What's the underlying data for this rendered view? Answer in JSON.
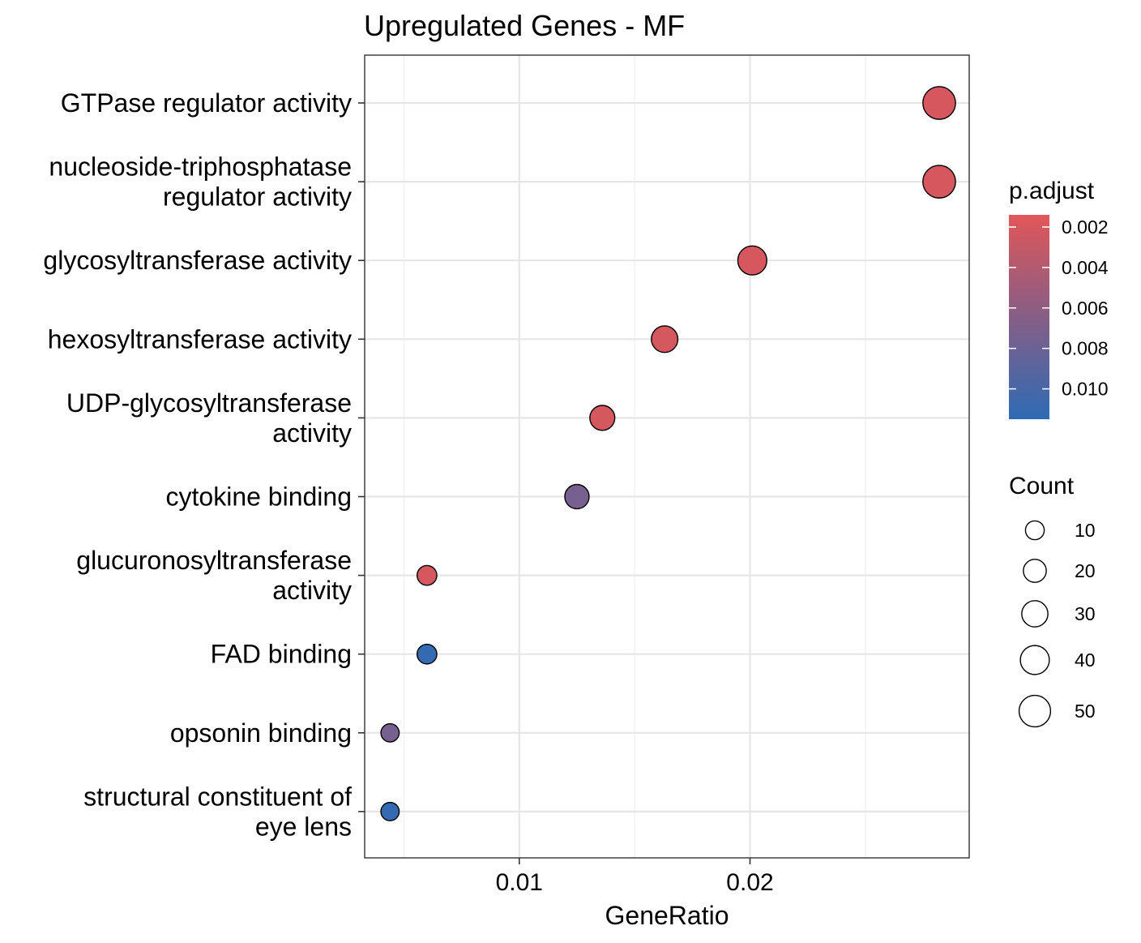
{
  "chart_data": {
    "type": "scatter",
    "title": "Upregulated Genes - MF",
    "xlabel": "GeneRatio",
    "ylabel": "",
    "xlim": [
      0.0033,
      0.0295
    ],
    "x_ticks": [
      0.01,
      0.02
    ],
    "x_tick_labels": [
      "0.01",
      "0.02"
    ],
    "grid": true,
    "legend_position": "right",
    "categories": [
      [
        "GTPase regulator activity"
      ],
      [
        "nucleoside-triphosphatase",
        "regulator activity"
      ],
      [
        "glycosyltransferase activity"
      ],
      [
        "hexosyltransferase activity"
      ],
      [
        "UDP-glycosyltransferase",
        "activity"
      ],
      [
        "cytokine binding"
      ],
      [
        "glucuronosyltransferase",
        "activity"
      ],
      [
        "FAD binding"
      ],
      [
        "opsonin binding"
      ],
      [
        "structural constituent of",
        "eye lens"
      ]
    ],
    "series": [
      {
        "x": [
          0.0282,
          0.0282,
          0.0201,
          0.0163,
          0.0136,
          0.0125,
          0.006,
          0.006,
          0.0044,
          0.0044
        ],
        "count": [
          55,
          55,
          40,
          31,
          26,
          24,
          12,
          12,
          9,
          9
        ],
        "p_adjust": [
          0.002,
          0.002,
          0.002,
          0.0021,
          0.0021,
          0.0074,
          0.0021,
          0.0112,
          0.0074,
          0.0112
        ]
      }
    ],
    "color_legend": {
      "title": "p.adjust",
      "range": [
        0.0014,
        0.0115
      ],
      "ticks": [
        0.002,
        0.004,
        0.006,
        0.008,
        0.01
      ],
      "tick_labels": [
        "0.002",
        "0.004",
        "0.006",
        "0.008",
        "0.010"
      ],
      "low_color": "#E15759",
      "high_color": "#2E6BB5",
      "mid_color": "#875E86"
    },
    "size_legend": {
      "title": "Count",
      "values": [
        10,
        20,
        30,
        40,
        50
      ],
      "labels": [
        "10",
        "20",
        "30",
        "40",
        "50"
      ]
    }
  }
}
